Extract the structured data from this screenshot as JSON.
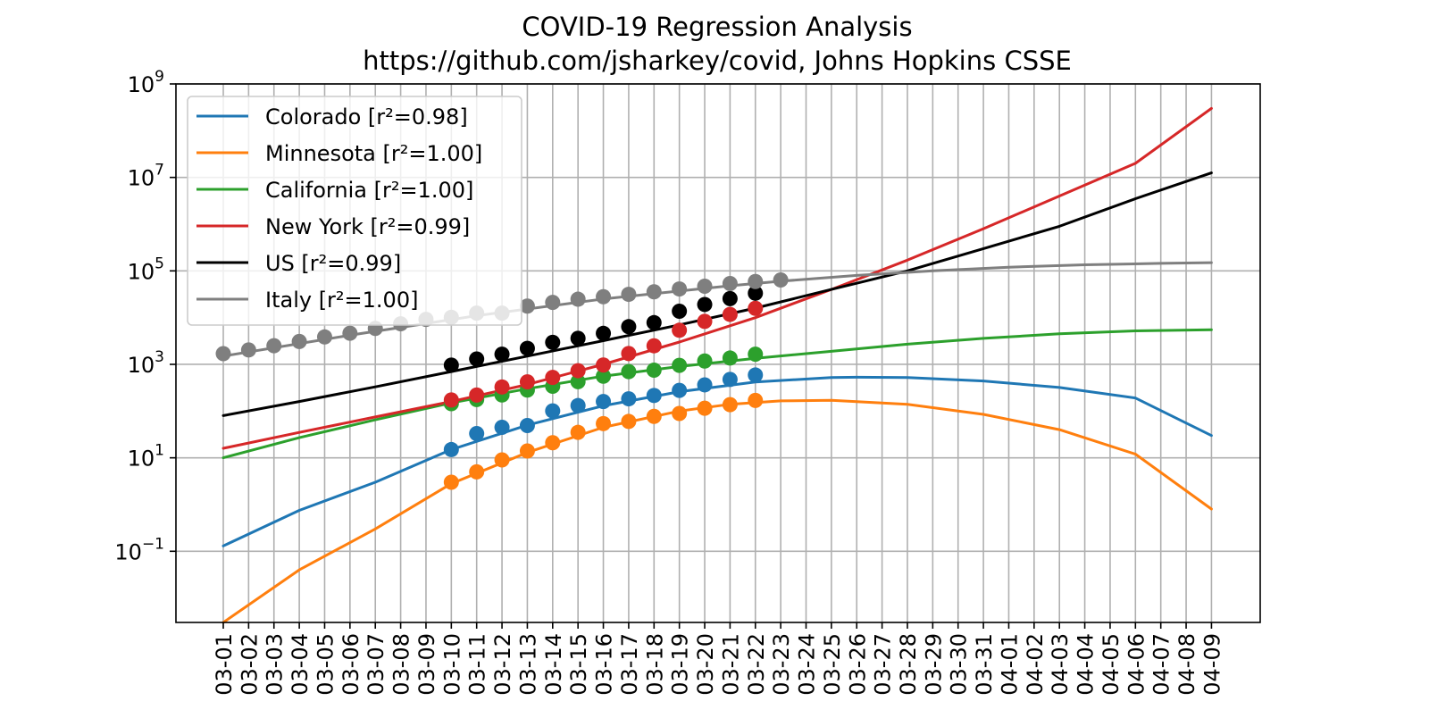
{
  "chart_data": {
    "type": "line",
    "title": "COVID-19 Regression Analysis",
    "subtitle": "https://github.com/jsharkey/covid, Johns Hopkins CSSE",
    "yscale": "log",
    "ylim": [
      0.003,
      1000000000
    ],
    "y_ticks": [
      {
        "value": 0.1,
        "base": "10",
        "exp": "−1"
      },
      {
        "value": 10,
        "base": "10",
        "exp": "1"
      },
      {
        "value": 1000,
        "base": "10",
        "exp": "3"
      },
      {
        "value": 100000,
        "base": "10",
        "exp": "5"
      },
      {
        "value": 10000000,
        "base": "10",
        "exp": "7"
      },
      {
        "value": 1000000000,
        "base": "10",
        "exp": "9"
      }
    ],
    "x_start_label": "03-01",
    "x_tick_labels": [
      "03-01",
      "03-02",
      "03-03",
      "03-04",
      "03-05",
      "03-06",
      "03-07",
      "03-08",
      "03-09",
      "03-10",
      "03-11",
      "03-12",
      "03-13",
      "03-14",
      "03-15",
      "03-16",
      "03-17",
      "03-18",
      "03-19",
      "03-20",
      "03-21",
      "03-22",
      "03-23",
      "03-24",
      "03-25",
      "03-26",
      "03-27",
      "03-28",
      "03-29",
      "03-30",
      "03-31",
      "04-01",
      "04-02",
      "04-03",
      "04-04",
      "04-05",
      "04-06",
      "04-07",
      "04-08",
      "04-09"
    ],
    "legend_position": "top-left",
    "series": [
      {
        "name": "Colorado [r²=0.98]",
        "color": "#1f77b4",
        "data_start_day": 9,
        "data": [
          15,
          33,
          45,
          49,
          101,
          131,
          160,
          183,
          216,
          277,
          364,
          475,
          591
        ],
        "fit": [
          [
            0,
            0.13
          ],
          [
            3,
            0.75
          ],
          [
            6,
            3
          ],
          [
            9,
            15
          ],
          [
            12,
            50
          ],
          [
            15,
            130
          ],
          [
            18,
            260
          ],
          [
            21,
            420
          ],
          [
            24,
            520
          ],
          [
            25,
            530
          ],
          [
            27,
            520
          ],
          [
            30,
            440
          ],
          [
            33,
            320
          ],
          [
            36,
            190
          ],
          [
            39,
            30
          ]
        ]
      },
      {
        "name": "Minnesota [r²=1.00]",
        "color": "#ff7f0e",
        "data_start_day": 9,
        "data": [
          3,
          5,
          9,
          14,
          21,
          35,
          54,
          60,
          77,
          89,
          115,
          137,
          169
        ],
        "fit": [
          [
            0,
            0.003
          ],
          [
            3,
            0.04
          ],
          [
            6,
            0.3
          ],
          [
            9,
            2.8
          ],
          [
            12,
            13
          ],
          [
            15,
            45
          ],
          [
            18,
            100
          ],
          [
            20,
            140
          ],
          [
            22,
            165
          ],
          [
            24,
            170
          ],
          [
            27,
            140
          ],
          [
            30,
            85
          ],
          [
            33,
            40
          ],
          [
            36,
            12
          ],
          [
            39,
            0.8
          ]
        ]
      },
      {
        "name": "California [r²=1.00]",
        "color": "#2ca02c",
        "data_start_day": 9,
        "data": [
          144,
          177,
          221,
          282,
          340,
          426,
          557,
          698,
          751,
          952,
          1177,
          1364,
          1646
        ],
        "fit": [
          [
            0,
            10
          ],
          [
            3,
            27
          ],
          [
            6,
            65
          ],
          [
            9,
            150
          ],
          [
            12,
            300
          ],
          [
            15,
            560
          ],
          [
            18,
            900
          ],
          [
            21,
            1350
          ],
          [
            24,
            1900
          ],
          [
            27,
            2700
          ],
          [
            30,
            3600
          ],
          [
            33,
            4500
          ],
          [
            36,
            5200
          ],
          [
            39,
            5500
          ]
        ]
      },
      {
        "name": "New York [r²=0.99]",
        "color": "#d62728",
        "data_start_day": 9,
        "data": [
          173,
          220,
          328,
          421,
          525,
          732,
          967,
          1706,
          2495,
          5365,
          8310,
          11710,
          15800
        ],
        "fit": [
          [
            0,
            16
          ],
          [
            3,
            35
          ],
          [
            6,
            75
          ],
          [
            9,
            160
          ],
          [
            12,
            370
          ],
          [
            15,
            1000
          ],
          [
            18,
            3000
          ],
          [
            21,
            10000
          ],
          [
            24,
            40000
          ],
          [
            27,
            170000
          ],
          [
            30,
            800000
          ],
          [
            33,
            4000000
          ],
          [
            36,
            20000000
          ],
          [
            39,
            300000000
          ]
        ]
      },
      {
        "name": "US [r²=0.99]",
        "color": "#000000",
        "data_start_day": 9,
        "data": [
          960,
          1300,
          1650,
          2200,
          2950,
          3600,
          4600,
          6400,
          7800,
          13700,
          19100,
          25500,
          33300
        ],
        "fit": [
          [
            0,
            80
          ],
          [
            3,
            160
          ],
          [
            6,
            330
          ],
          [
            9,
            700
          ],
          [
            12,
            1500
          ],
          [
            15,
            3200
          ],
          [
            18,
            7000
          ],
          [
            21,
            16000
          ],
          [
            24,
            40000
          ],
          [
            27,
            100000
          ],
          [
            30,
            300000
          ],
          [
            33,
            900000
          ],
          [
            36,
            3500000
          ],
          [
            39,
            12500000
          ]
        ]
      },
      {
        "name": "Italy [r²=1.00]",
        "color": "#7f7f7f",
        "data_start_day": 0,
        "data": [
          1694,
          2036,
          2502,
          3089,
          3858,
          4636,
          5883,
          7375,
          9172,
          10149,
          12462,
          12462,
          17660,
          21157,
          24747,
          27980,
          31506,
          35713,
          41035,
          47021,
          53578,
          59138,
          63927
        ],
        "fit": [
          [
            0,
            1500
          ],
          [
            5,
            4200
          ],
          [
            10,
            11000
          ],
          [
            15,
            25000
          ],
          [
            20,
            48000
          ],
          [
            22,
            60000
          ],
          [
            25,
            80000
          ],
          [
            28,
            100000
          ],
          [
            31,
            120000
          ],
          [
            34,
            135000
          ],
          [
            37,
            145000
          ],
          [
            39,
            150000
          ]
        ]
      }
    ]
  }
}
